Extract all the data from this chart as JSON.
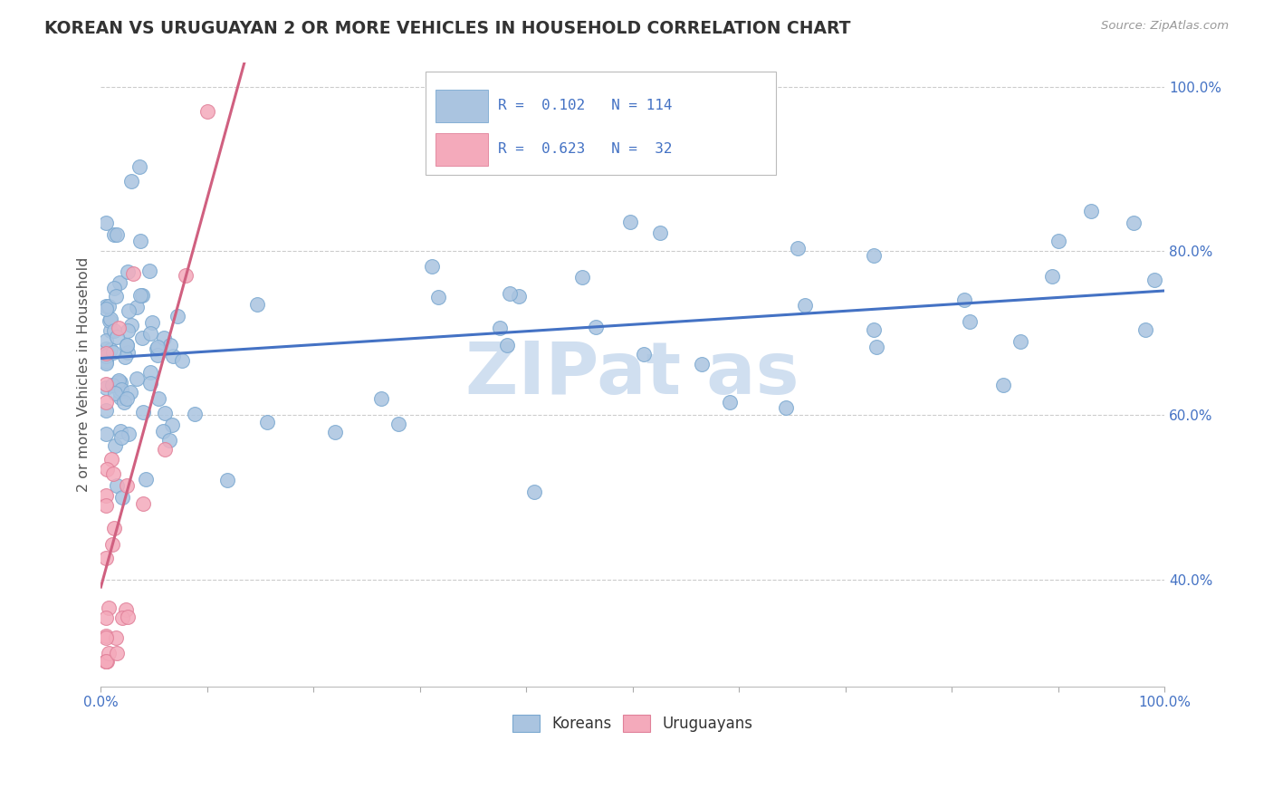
{
  "title": "KOREAN VS URUGUAYAN 2 OR MORE VEHICLES IN HOUSEHOLD CORRELATION CHART",
  "source": "Source: ZipAtlas.com",
  "xlabel": "",
  "ylabel": "2 or more Vehicles in Household",
  "xlim": [
    0.0,
    1.0
  ],
  "ylim": [
    0.27,
    1.03
  ],
  "yticks": [
    0.4,
    0.6,
    0.8,
    1.0
  ],
  "ytick_labels": [
    "40.0%",
    "60.0%",
    "80.0%",
    "100.0%"
  ],
  "korean_color": "#aac4e0",
  "korean_edge_color": "#7aa8d0",
  "uruguayan_color": "#f4aabb",
  "uruguayan_edge_color": "#e08099",
  "korean_line_color": "#4472c4",
  "uruguayan_line_color": "#d06080",
  "watermark_color": "#d0dff0",
  "background_color": "#ffffff",
  "grid_color": "#cccccc",
  "title_color": "#333333",
  "label_color": "#4472c4",
  "axis_label_color": "#555555",
  "tick_color": "#4472c4"
}
